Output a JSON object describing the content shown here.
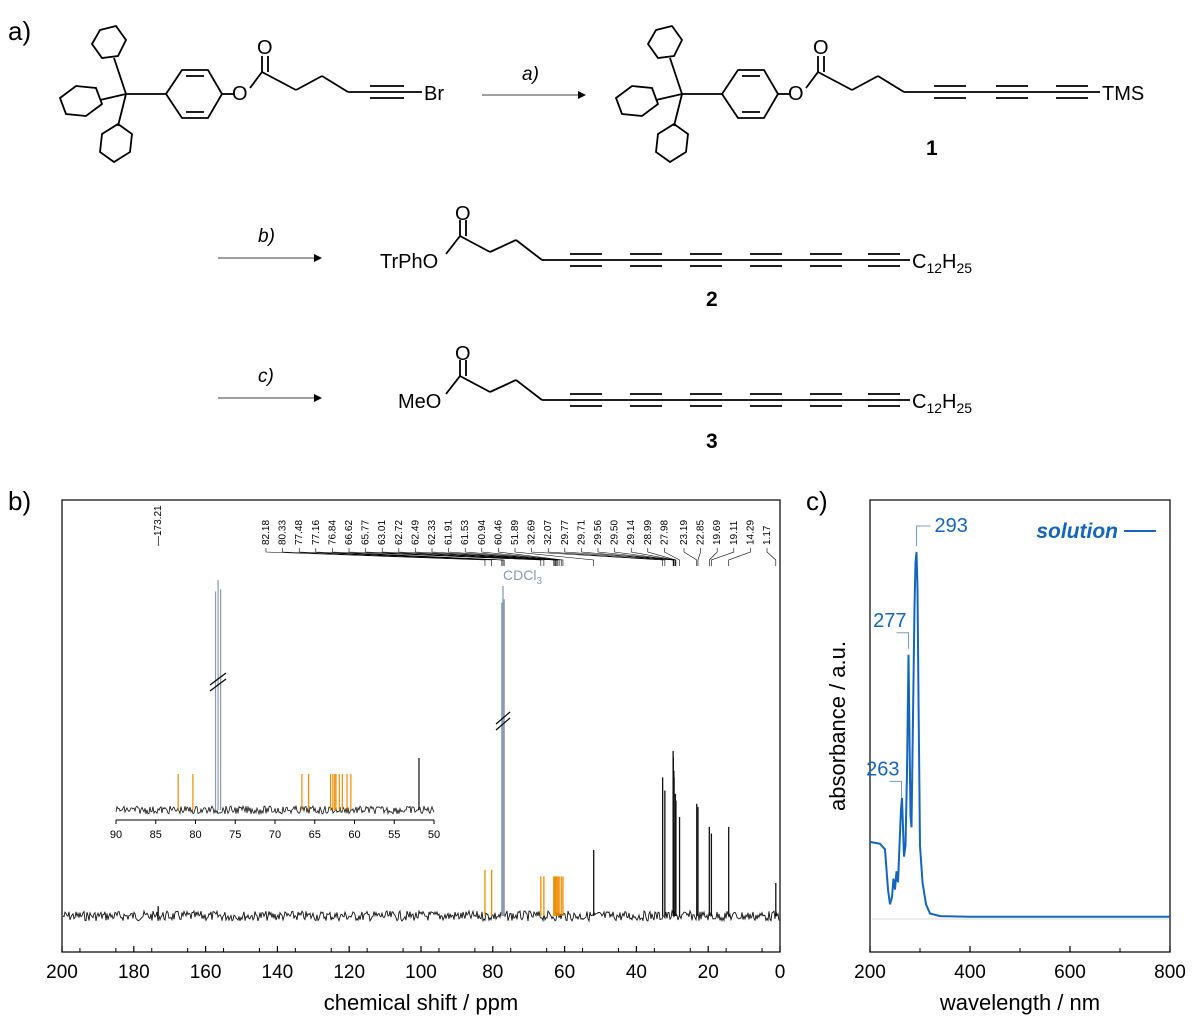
{
  "scheme": {
    "panel_label": "a)",
    "steps": {
      "a": "a)",
      "b": "b)",
      "c": "c)"
    },
    "start_material": {
      "ester_o": "O",
      "carbonyl_o": "O",
      "end_group": "Br"
    },
    "compound1": {
      "number": "1",
      "ester_o": "O",
      "carbonyl_o": "O",
      "end_group": "TMS"
    },
    "compound2": {
      "number": "2",
      "prefix": "TrPhO",
      "carbonyl_o": "O",
      "tail": "C",
      "tail_sub1": "12",
      "tail_h": "H",
      "tail_sub2": "25"
    },
    "compound3": {
      "number": "3",
      "prefix": "MeO",
      "carbonyl_o": "O",
      "tail": "C",
      "tail_sub1": "12",
      "tail_h": "H",
      "tail_sub2": "25"
    }
  },
  "chart_data": [
    {
      "type": "line",
      "panel_label": "b)",
      "xlabel": "chemical shift / ppm",
      "xlim": [
        200,
        0
      ],
      "xticks": [
        "200",
        "180",
        "160",
        "140",
        "120",
        "100",
        "80",
        "60",
        "40",
        "20",
        "0"
      ],
      "peak_labels_left": [
        "173.21"
      ],
      "peak_labels": [
        "82.18",
        "80.33",
        "77.48",
        "77.16",
        "76.84",
        "66.62",
        "65.77",
        "63.01",
        "62.72",
        "62.49",
        "62.33",
        "61.91",
        "61.53",
        "60.94",
        "60.46",
        "51.89",
        "32.69",
        "32.07",
        "29.77",
        "29.71",
        "29.56",
        "29.50",
        "29.14",
        "28.99",
        "27.98"
      ],
      "peak_labels_right": [
        "23.19",
        "22.85",
        "19.69",
        "19.11",
        "14.29",
        "1.17"
      ],
      "solvent_label": "CDCl",
      "solvent_sub": "3",
      "peaks": [
        {
          "ppm": 173.21,
          "h": 0.03,
          "c": "k"
        },
        {
          "ppm": 82.18,
          "h": 0.14,
          "c": "o"
        },
        {
          "ppm": 80.33,
          "h": 0.14,
          "c": "o"
        },
        {
          "ppm": 77.48,
          "h": 0.95,
          "c": "g"
        },
        {
          "ppm": 77.16,
          "h": 1.0,
          "c": "g"
        },
        {
          "ppm": 76.84,
          "h": 0.96,
          "c": "g"
        },
        {
          "ppm": 66.62,
          "h": 0.12,
          "c": "o"
        },
        {
          "ppm": 65.77,
          "h": 0.12,
          "c": "o"
        },
        {
          "ppm": 63.01,
          "h": 0.12,
          "c": "o"
        },
        {
          "ppm": 62.72,
          "h": 0.12,
          "c": "o"
        },
        {
          "ppm": 62.49,
          "h": 0.12,
          "c": "o"
        },
        {
          "ppm": 62.33,
          "h": 0.12,
          "c": "o"
        },
        {
          "ppm": 61.91,
          "h": 0.12,
          "c": "o"
        },
        {
          "ppm": 61.53,
          "h": 0.12,
          "c": "o"
        },
        {
          "ppm": 60.94,
          "h": 0.12,
          "c": "o"
        },
        {
          "ppm": 60.46,
          "h": 0.12,
          "c": "o"
        },
        {
          "ppm": 51.89,
          "h": 0.2,
          "c": "k"
        },
        {
          "ppm": 32.69,
          "h": 0.42,
          "c": "k"
        },
        {
          "ppm": 32.07,
          "h": 0.38,
          "c": "k"
        },
        {
          "ppm": 29.77,
          "h": 0.5,
          "c": "k"
        },
        {
          "ppm": 29.71,
          "h": 0.48,
          "c": "k"
        },
        {
          "ppm": 29.56,
          "h": 0.44,
          "c": "k"
        },
        {
          "ppm": 29.5,
          "h": 0.42,
          "c": "k"
        },
        {
          "ppm": 29.14,
          "h": 0.37,
          "c": "k"
        },
        {
          "ppm": 28.99,
          "h": 0.35,
          "c": "k"
        },
        {
          "ppm": 27.98,
          "h": 0.3,
          "c": "k"
        },
        {
          "ppm": 23.19,
          "h": 0.34,
          "c": "k"
        },
        {
          "ppm": 22.85,
          "h": 0.33,
          "c": "k"
        },
        {
          "ppm": 19.69,
          "h": 0.27,
          "c": "k"
        },
        {
          "ppm": 19.11,
          "h": 0.25,
          "c": "k"
        },
        {
          "ppm": 14.29,
          "h": 0.27,
          "c": "k"
        },
        {
          "ppm": 1.17,
          "h": 0.1,
          "c": "k"
        }
      ],
      "inset": {
        "xlim": [
          90,
          50
        ],
        "xticks": [
          "90",
          "85",
          "80",
          "75",
          "70",
          "65",
          "60",
          "55",
          "50"
        ]
      },
      "colors": {
        "baseline": "#111111",
        "alkyne": "#f08c00",
        "solvent": "#8a9bb3"
      }
    },
    {
      "type": "line",
      "panel_label": "c)",
      "xlabel": "wavelength / nm",
      "ylabel": "absorbance / a.u.",
      "xlim": [
        200,
        800
      ],
      "xticks": [
        "200",
        "400",
        "600",
        "800"
      ],
      "series": [
        {
          "name": "solution",
          "color": "#1565c0",
          "x": [
            200,
            220,
            230,
            236,
            240,
            244,
            247,
            250,
            253,
            256,
            259,
            262,
            264,
            266,
            268,
            271,
            274,
            277,
            279,
            281,
            283,
            286,
            289,
            291,
            293,
            295,
            297,
            300,
            305,
            312,
            320,
            340,
            400,
            500,
            600,
            700,
            800
          ],
          "y": [
            0.21,
            0.205,
            0.19,
            0.08,
            0.04,
            0.06,
            0.11,
            0.08,
            0.13,
            0.1,
            0.2,
            0.3,
            0.33,
            0.25,
            0.17,
            0.2,
            0.4,
            0.72,
            0.5,
            0.28,
            0.25,
            0.55,
            0.85,
            0.97,
            1.0,
            0.9,
            0.6,
            0.2,
            0.1,
            0.04,
            0.015,
            0.008,
            0.006,
            0.006,
            0.006,
            0.006,
            0.006
          ]
        }
      ],
      "peak_labels": [
        "263",
        "277",
        "293"
      ],
      "peaks_nm": [
        263,
        277,
        293
      ]
    }
  ]
}
